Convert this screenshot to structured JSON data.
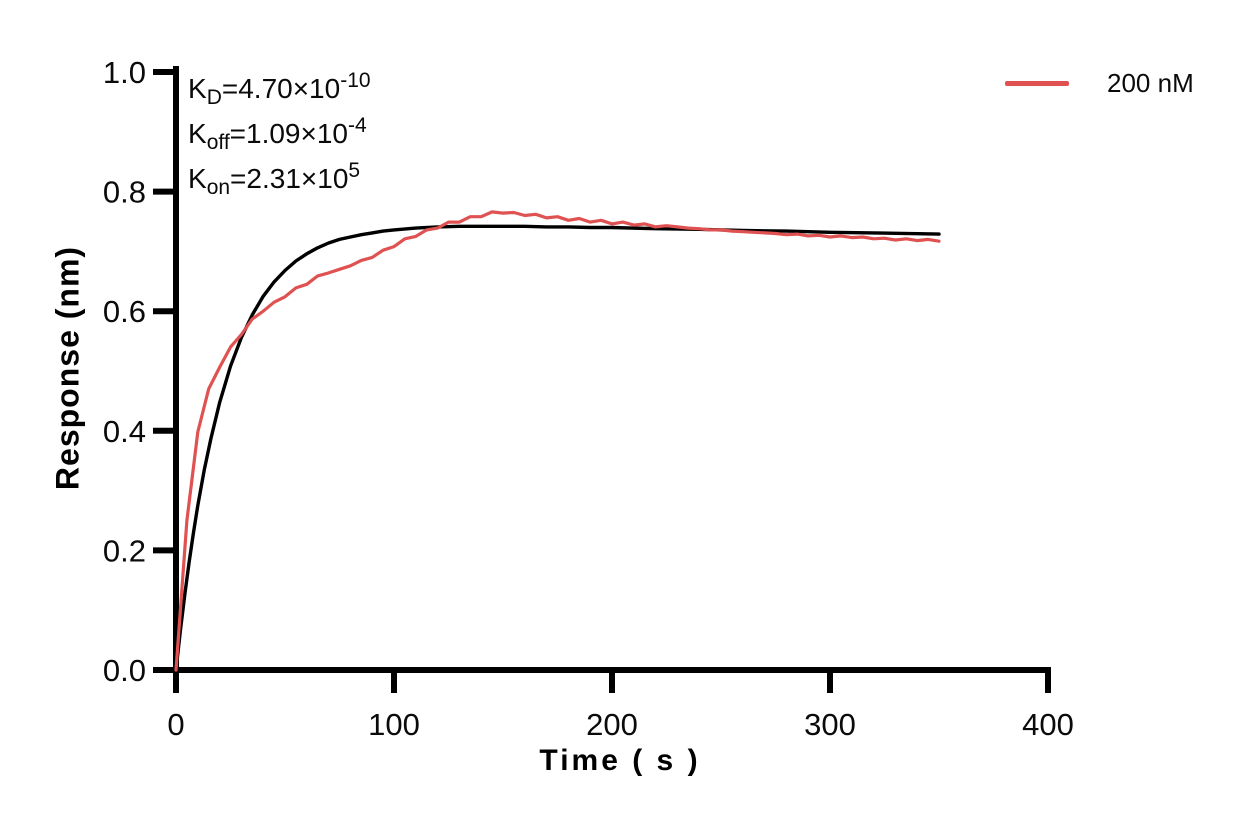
{
  "page": {
    "background": "#ffffff"
  },
  "legend": {
    "label": "200 nM",
    "line_color": "#e05252"
  },
  "chart_data": {
    "type": "line",
    "title": "",
    "xlabel": "Time ( s )",
    "ylabel": "Response (nm)",
    "xlim": [
      0,
      400
    ],
    "ylim": [
      0.0,
      1.0
    ],
    "x_ticks": [
      0,
      100,
      200,
      300,
      400
    ],
    "x_tick_labels": [
      "0",
      "100",
      "200",
      "300",
      "400"
    ],
    "y_ticks": [
      0.0,
      0.2,
      0.4,
      0.6,
      0.8,
      1.0
    ],
    "y_tick_labels": [
      "0.0",
      "0.2",
      "0.4",
      "0.6",
      "0.8",
      "1.0"
    ],
    "grid": false,
    "legend_position": "top-right",
    "axis_color": "#000000",
    "annotations": {
      "kd": {
        "base": "K",
        "sub": "D",
        "body": "=4.70×10",
        "exp": "-10"
      },
      "koff": {
        "base": "K",
        "sub": "off",
        "body": "=1.09×10",
        "exp": "-4"
      },
      "kon": {
        "base": "K",
        "sub": "on",
        "body": "=2.31×10",
        "exp": "5"
      }
    },
    "series": [
      {
        "name": "fit",
        "color": "#000000",
        "width": 3.4,
        "x": [
          0,
          2,
          4,
          6,
          8,
          10,
          13,
          16,
          20,
          25,
          30,
          35,
          40,
          45,
          50,
          55,
          60,
          65,
          70,
          75,
          80,
          85,
          90,
          95,
          100,
          110,
          120,
          130,
          140,
          150,
          160,
          170,
          180,
          190,
          200,
          220,
          240,
          260,
          280,
          300,
          320,
          350
        ],
        "y": [
          0,
          0.066,
          0.125,
          0.18,
          0.229,
          0.275,
          0.335,
          0.387,
          0.447,
          0.508,
          0.556,
          0.594,
          0.625,
          0.649,
          0.668,
          0.684,
          0.696,
          0.706,
          0.714,
          0.72,
          0.724,
          0.728,
          0.731,
          0.734,
          0.736,
          0.739,
          0.741,
          0.742,
          0.742,
          0.742,
          0.742,
          0.741,
          0.741,
          0.74,
          0.74,
          0.738,
          0.737,
          0.735,
          0.734,
          0.732,
          0.731,
          0.729
        ]
      },
      {
        "name": "200 nM",
        "color": "#e05252",
        "width": 3.2,
        "x": [
          0,
          5,
          10,
          15,
          20,
          25,
          30,
          35,
          40,
          45,
          50,
          55,
          60,
          65,
          70,
          75,
          80,
          85,
          90,
          95,
          100,
          105,
          110,
          115,
          120,
          125,
          130,
          135,
          140,
          145,
          150,
          155,
          160,
          165,
          170,
          175,
          180,
          185,
          190,
          195,
          200,
          205,
          210,
          215,
          220,
          225,
          230,
          235,
          240,
          245,
          250,
          255,
          260,
          265,
          270,
          275,
          280,
          285,
          290,
          295,
          300,
          305,
          310,
          315,
          320,
          325,
          330,
          335,
          340,
          345,
          350
        ],
        "y": [
          0.0,
          0.25,
          0.398,
          0.47,
          0.506,
          0.54,
          0.561,
          0.587,
          0.6,
          0.615,
          0.624,
          0.639,
          0.645,
          0.659,
          0.664,
          0.67,
          0.676,
          0.685,
          0.69,
          0.702,
          0.708,
          0.721,
          0.725,
          0.736,
          0.739,
          0.749,
          0.749,
          0.758,
          0.758,
          0.766,
          0.764,
          0.765,
          0.76,
          0.762,
          0.756,
          0.758,
          0.752,
          0.755,
          0.749,
          0.752,
          0.746,
          0.749,
          0.744,
          0.746,
          0.741,
          0.743,
          0.741,
          0.739,
          0.738,
          0.736,
          0.736,
          0.734,
          0.733,
          0.732,
          0.731,
          0.73,
          0.728,
          0.729,
          0.726,
          0.727,
          0.724,
          0.726,
          0.723,
          0.724,
          0.721,
          0.722,
          0.719,
          0.721,
          0.718,
          0.72,
          0.717
        ]
      }
    ]
  }
}
